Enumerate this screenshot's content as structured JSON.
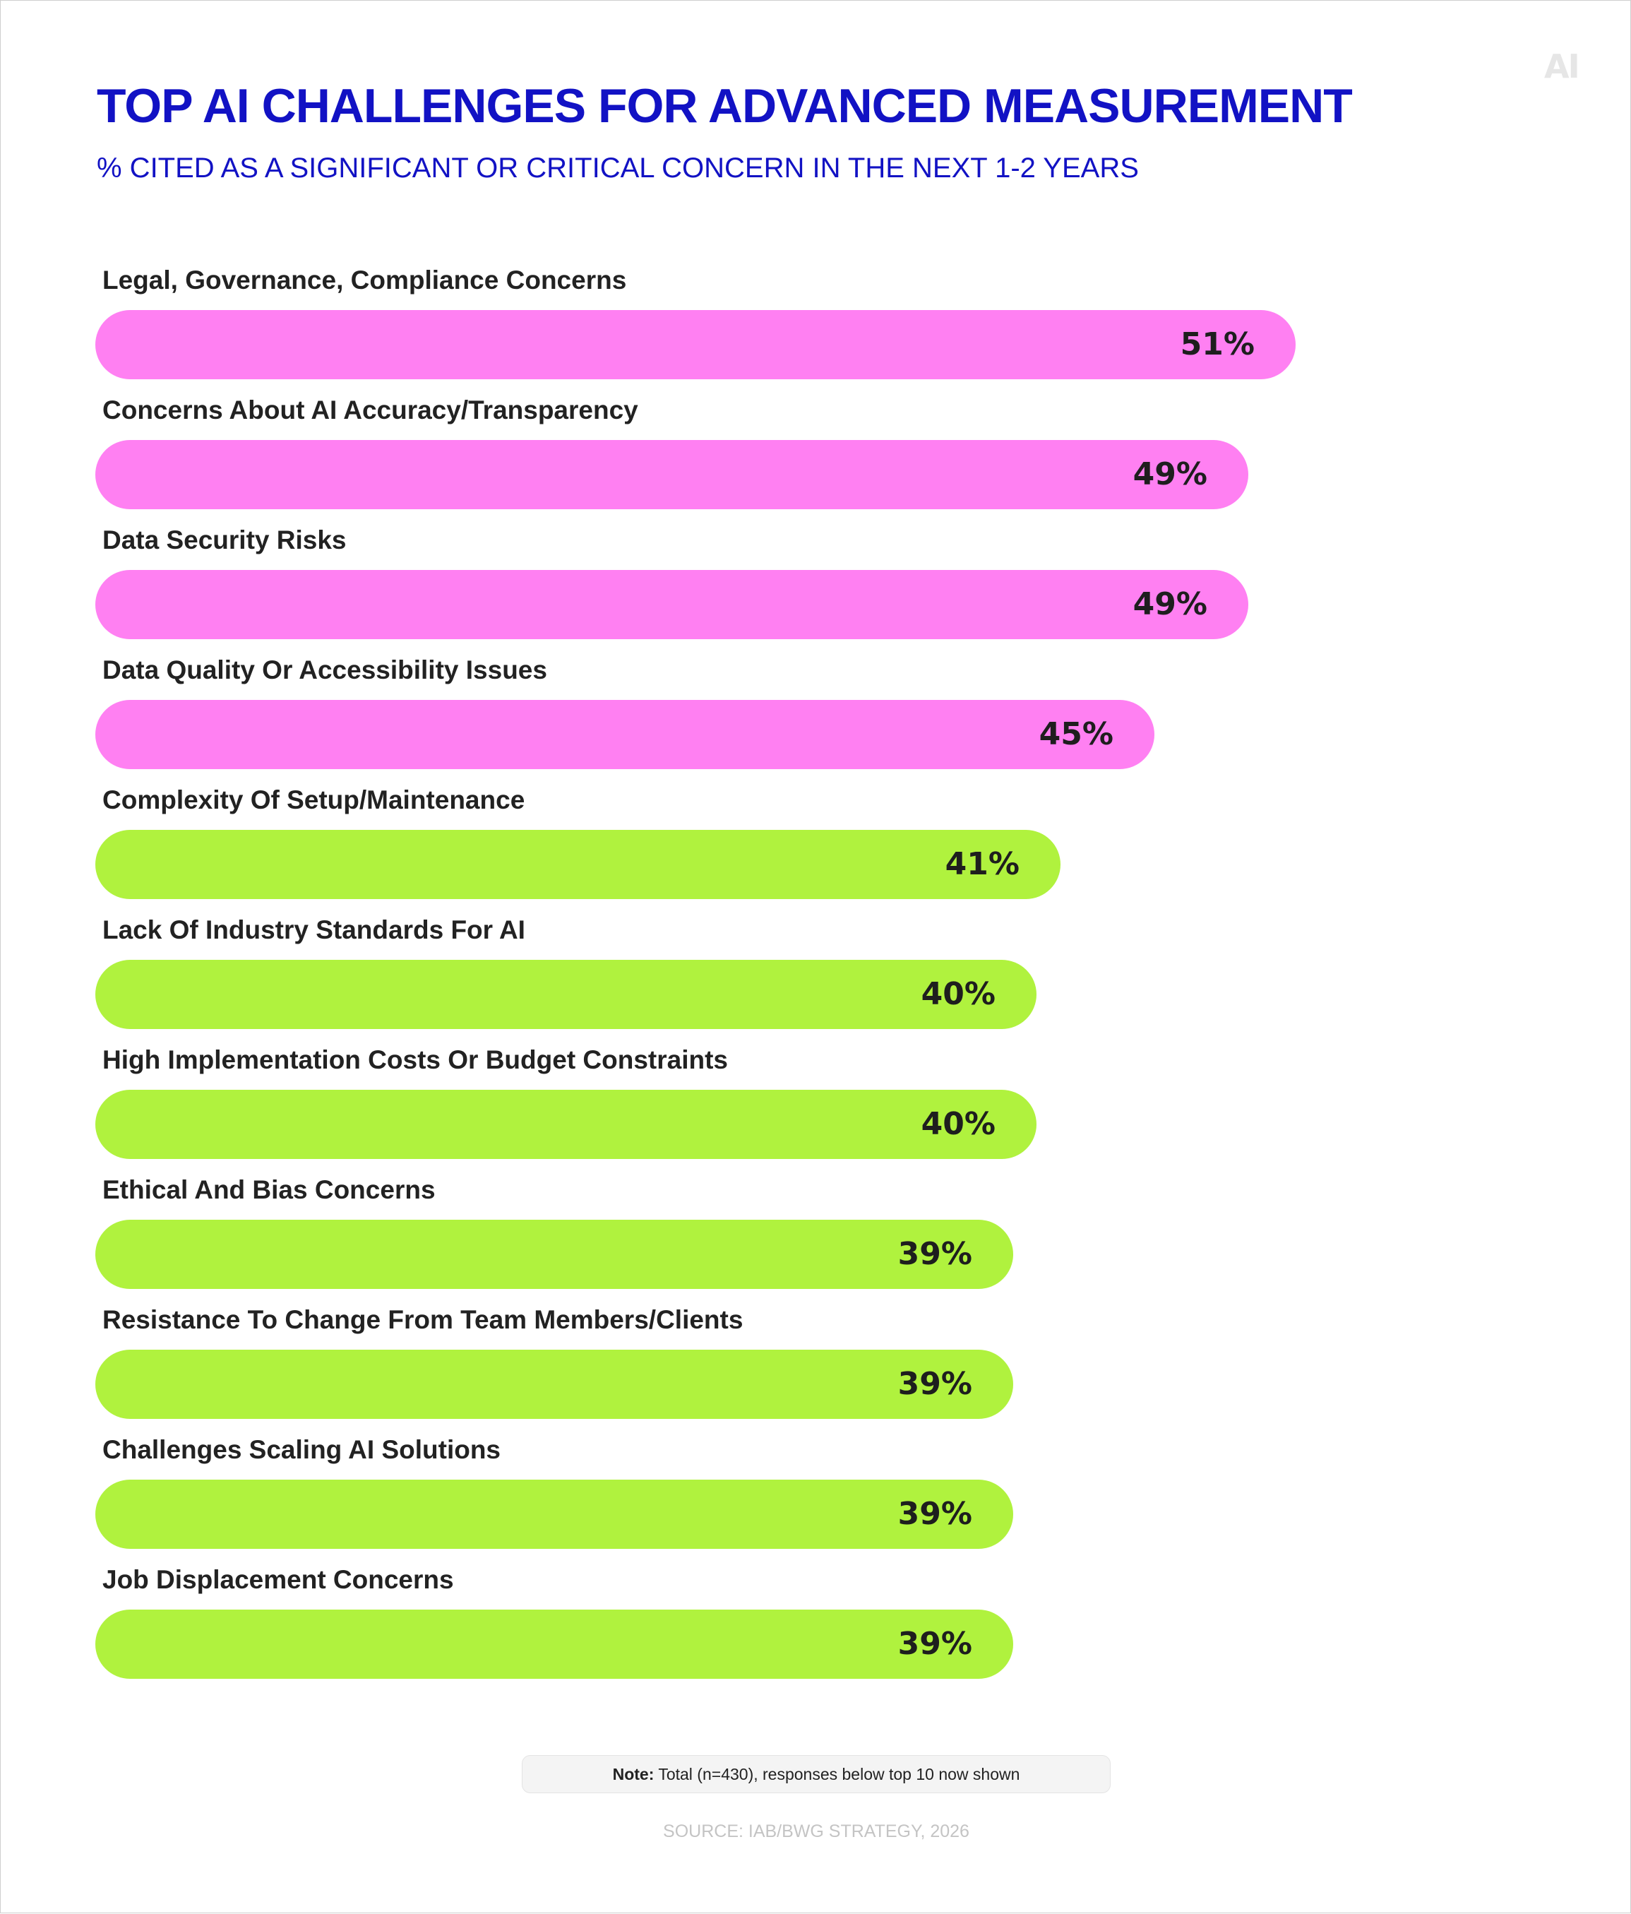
{
  "header": {
    "title": "TOP AI CHALLENGES FOR ADVANCED MEASUREMENT",
    "subtitle": "% CITED AS A SIGNIFICANT OR CRITICAL CONCERN IN THE NEXT 1-2 YEARS",
    "logo_text": "AI"
  },
  "colors": {
    "title": "#1212c4",
    "bar_pink": "#ff80f2",
    "bar_green": "#b0f23e",
    "value_text": "#1e1e1e",
    "label_text": "#222222"
  },
  "chart_data": {
    "type": "bar",
    "orientation": "horizontal",
    "title": "TOP AI CHALLENGES FOR ADVANCED MEASUREMENT",
    "subtitle": "% CITED AS A SIGNIFICANT OR CRITICAL CONCERN IN THE NEXT 1-2 YEARS",
    "xlabel": "",
    "ylabel": "",
    "grid": false,
    "legend": "none",
    "unit": "%",
    "categories": [
      "Legal, Governance, Compliance Concerns",
      "Concerns About AI Accuracy/Transparency",
      "Data Security Risks",
      "Data Quality Or Accessibility Issues",
      "Complexity Of Setup/Maintenance",
      "Lack Of Industry Standards For AI",
      "High Implementation Costs Or Budget Constraints",
      "Ethical And Bias Concerns",
      "Resistance To Change From Team Members/Clients",
      "Challenges Scaling AI Solutions",
      "Job Displacement Concerns"
    ],
    "values": [
      51,
      49,
      49,
      45,
      41,
      40,
      40,
      39,
      39,
      39,
      39
    ],
    "value_labels": [
      "51%",
      "49%",
      "49%",
      "45%",
      "41%",
      "40%",
      "40%",
      "39%",
      "39%",
      "39%",
      "39%"
    ],
    "bar_colors": [
      "#ff80f2",
      "#ff80f2",
      "#ff80f2",
      "#ff80f2",
      "#b0f23e",
      "#b0f23e",
      "#b0f23e",
      "#b0f23e",
      "#b0f23e",
      "#b0f23e",
      "#b0f23e"
    ]
  },
  "footer": {
    "note_label": "Note:",
    "note_text": " Total (n=430), responses below top 10 now shown",
    "source": "SOURCE: IAB/BWG STRATEGY, 2026"
  }
}
